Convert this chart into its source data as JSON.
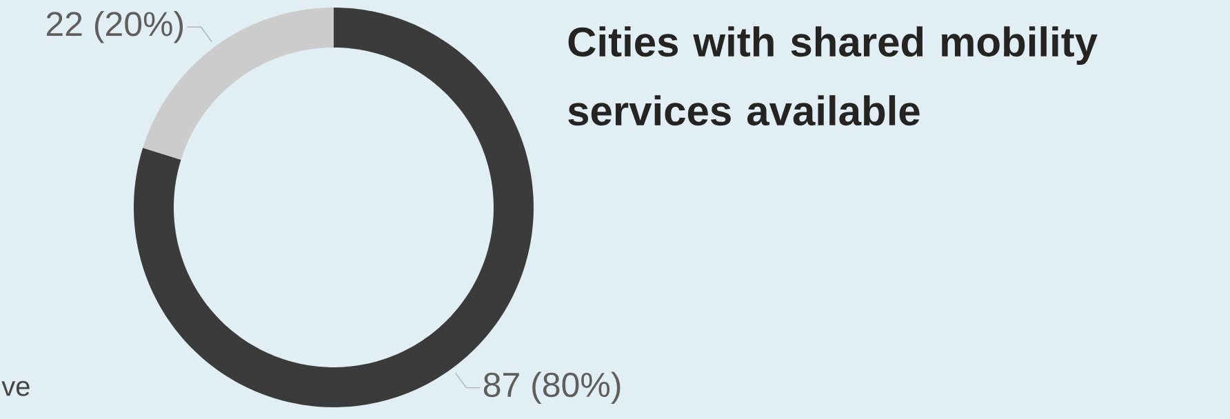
{
  "chart_data": {
    "type": "donut",
    "title": "Cities with shared mobility services available",
    "categories": [
      null,
      null
    ],
    "values": [
      87,
      22
    ],
    "colors": [
      "#3b3b3b",
      "#cccccc"
    ],
    "value_labels": [
      "87 (80%)",
      "22 (20%)"
    ],
    "annotations": [
      "ve"
    ]
  }
}
